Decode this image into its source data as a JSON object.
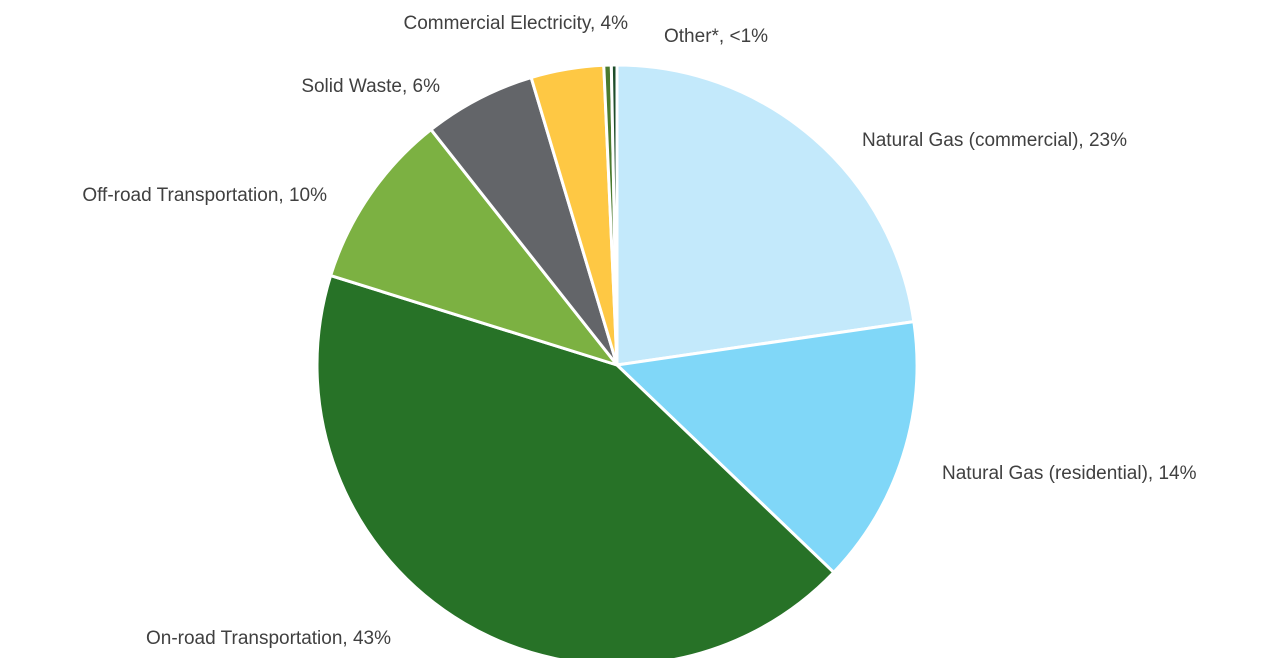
{
  "chart_data": {
    "type": "pie",
    "title": "",
    "slices": [
      {
        "name": "Natural Gas (commercial)",
        "value": 22.6,
        "label": "Natural Gas (commercial), 23%",
        "color": "#C3E9FB",
        "label_anchor": "start"
      },
      {
        "name": "Natural Gas (residential)",
        "value": 14.4,
        "label": "Natural Gas (residential), 14%",
        "color": "#80D7F8",
        "label_anchor": "start"
      },
      {
        "name": "On-road Transportation",
        "value": 42.5,
        "label": "On-road Transportation, 43%",
        "color": "#277227",
        "label_anchor": "end"
      },
      {
        "name": "Off-road Transportation",
        "value": 9.5,
        "label": "Off-road Transportation, 10%",
        "color": "#7CB142",
        "label_anchor": "end"
      },
      {
        "name": "Solid Waste",
        "value": 6.0,
        "label": "Solid Waste, 6%",
        "color": "#636569",
        "label_anchor": "end"
      },
      {
        "name": "Commercial Electricity",
        "value": 3.9,
        "label": "Commercial Electricity, 4%",
        "color": "#FEC844",
        "label_anchor": "end"
      },
      {
        "name": "Other*",
        "value": 0.4,
        "label": "Other*, <1%",
        "color": "#4A7A2E",
        "label_anchor": "start"
      },
      {
        "name": "Other*",
        "value": 0.3,
        "label": "",
        "color": "#1E4D2B",
        "label_anchor": "start"
      }
    ],
    "start_angle_deg": 0,
    "direction": "clockwise",
    "legend": "none",
    "data_labels": "category-and-percent outside"
  }
}
